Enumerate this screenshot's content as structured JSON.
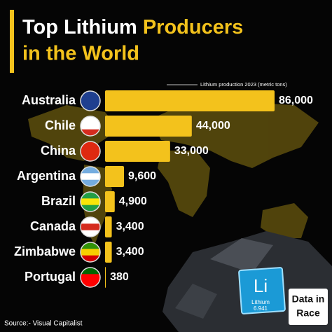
{
  "chart_data": {
    "type": "bar",
    "orientation": "horizontal",
    "title": [
      "Top Lithium",
      "Producers",
      "in the World"
    ],
    "annotation": "Lithium production 2023 (metric tons)",
    "categories": [
      "Australia",
      "Chile",
      "China",
      "Argentina",
      "Brazil",
      "Canada",
      "Zimbabwe",
      "Portugal"
    ],
    "values": [
      86000,
      44000,
      33000,
      9600,
      4900,
      3400,
      3400,
      380
    ],
    "value_labels": [
      "86,000",
      "44,000",
      "33,000",
      "9,600",
      "4,900",
      "3,400",
      "3,400",
      "380"
    ],
    "color": "#f3c21c",
    "xlim": [
      0,
      86000
    ],
    "source": "Source:- Visual Capitalist",
    "logo": [
      "Data in",
      "Race"
    ],
    "element": {
      "symbol": "Li",
      "name": "Lithium",
      "mass": "6.941"
    }
  }
}
